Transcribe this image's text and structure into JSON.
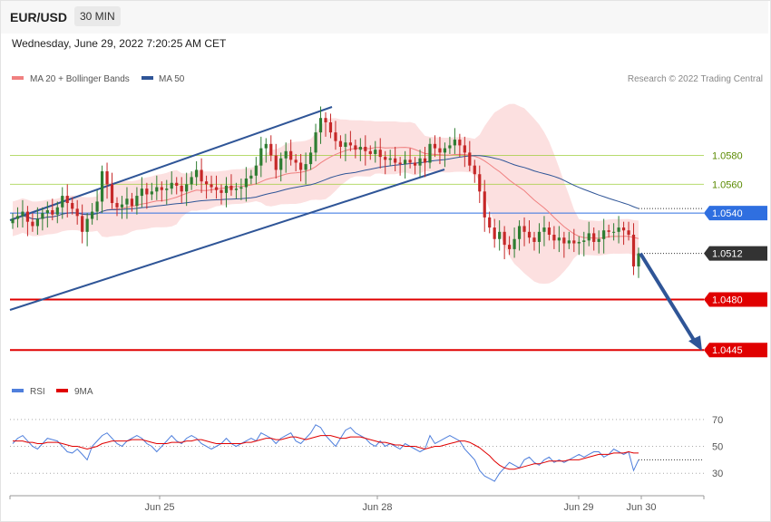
{
  "header": {
    "pair": "EUR/USD",
    "timeframe": "30 MIN",
    "datetime": "Wednesday, June 29, 2022 7:20:25 AM CET"
  },
  "credit": "Research © 2022 Trading Central",
  "colors": {
    "bollinger_band": "#fbd6d6",
    "ma20": "#f08080",
    "ma50": "#2f5597",
    "resistance": "#9acd32",
    "pivot": "#2f6fe0",
    "support": "#e00000",
    "current_price": "#333333",
    "candle_up": "#2e7d32",
    "candle_down": "#c62828",
    "rsi": "#4f7fdc",
    "rsi_ma": "#e00000"
  },
  "chart_data": [
    {
      "type": "candlestick",
      "series": [
        {
          "name": "MA 20 + Bollinger Bands",
          "legend": "MA 20 + Bollinger Bands"
        },
        {
          "name": "MA 50",
          "legend": "MA 50"
        }
      ],
      "x_ticks": [
        "Jun 25",
        "Jun 28",
        "Jun 29",
        "Jun 30"
      ],
      "ylim": [
        1.0425,
        1.0625
      ],
      "levels": [
        {
          "value": 1.058,
          "label": "1.0580",
          "kind": "resistance"
        },
        {
          "value": 1.056,
          "label": "1.0560",
          "kind": "resistance"
        },
        {
          "value": 1.054,
          "label": "1.0540",
          "kind": "pivot"
        },
        {
          "value": 1.0512,
          "label": "1.0512",
          "kind": "current"
        },
        {
          "value": 1.048,
          "label": "1.0480",
          "kind": "support"
        },
        {
          "value": 1.0445,
          "label": "1.0445",
          "kind": "support"
        }
      ],
      "close": [
        1.0536,
        1.0538,
        1.0541,
        1.0534,
        1.0531,
        1.0536,
        1.054,
        1.0542,
        1.0539,
        1.0544,
        1.0552,
        1.0547,
        1.0543,
        1.0538,
        1.0527,
        1.0536,
        1.0541,
        1.0548,
        1.0569,
        1.056,
        1.0547,
        1.0544,
        1.0546,
        1.055,
        1.0545,
        1.0552,
        1.0557,
        1.0553,
        1.0555,
        1.0558,
        1.0556,
        1.0557,
        1.0561,
        1.0559,
        1.0555,
        1.056,
        1.0565,
        1.057,
        1.0562,
        1.056,
        1.0558,
        1.0556,
        1.0554,
        1.0559,
        1.0556,
        1.0557,
        1.0558,
        1.0564,
        1.0566,
        1.0573,
        1.0585,
        1.0588,
        1.058,
        1.057,
        1.0578,
        1.0583,
        1.0577,
        1.0575,
        1.057,
        1.0574,
        1.0582,
        1.0596,
        1.0606,
        1.0603,
        1.0596,
        1.059,
        1.0586,
        1.0589,
        1.0587,
        1.0584,
        1.0586,
        1.0583,
        1.0581,
        1.0584,
        1.0579,
        1.0577,
        1.0578,
        1.0575,
        1.0574,
        1.0577,
        1.0575,
        1.0573,
        1.0578,
        1.0575,
        1.0588,
        1.0585,
        1.0582,
        1.0585,
        1.0587,
        1.0591,
        1.0587,
        1.0582,
        1.0573,
        1.0567,
        1.0555,
        1.0537,
        1.053,
        1.0522,
        1.0527,
        1.0518,
        1.0515,
        1.0522,
        1.0531,
        1.0527,
        1.0523,
        1.052,
        1.0527,
        1.053,
        1.0525,
        1.0521,
        1.0523,
        1.0519,
        1.0521,
        1.0519,
        1.052,
        1.0521,
        1.0526,
        1.052,
        1.0522,
        1.0528,
        1.0527,
        1.0527,
        1.053,
        1.0528,
        1.0525,
        1.0503,
        1.0512
      ],
      "forecast": {
        "from": 1.0512,
        "to": 1.0445
      }
    },
    {
      "type": "line",
      "title": "RSI",
      "series": [
        {
          "name": "RSI",
          "legend": "RSI"
        },
        {
          "name": "9MA",
          "legend": "9MA"
        }
      ],
      "yticks": [
        70,
        50,
        30
      ],
      "ylim": [
        18,
        80
      ],
      "rsi": [
        52,
        56,
        58,
        54,
        50,
        48,
        52,
        56,
        55,
        54,
        50,
        46,
        45,
        48,
        44,
        40,
        50,
        54,
        58,
        60,
        56,
        52,
        50,
        54,
        56,
        58,
        56,
        52,
        50,
        46,
        50,
        54,
        58,
        54,
        52,
        56,
        58,
        56,
        52,
        50,
        48,
        50,
        52,
        56,
        52,
        50,
        52,
        54,
        56,
        54,
        60,
        58,
        56,
        52,
        56,
        58,
        60,
        54,
        52,
        56,
        60,
        66,
        64,
        58,
        54,
        50,
        56,
        62,
        64,
        60,
        58,
        56,
        52,
        50,
        54,
        50,
        52,
        50,
        48,
        52,
        50,
        48,
        46,
        48,
        58,
        52,
        54,
        56,
        58,
        56,
        54,
        48,
        44,
        40,
        32,
        28,
        26,
        24,
        30,
        34,
        38,
        36,
        34,
        40,
        42,
        38,
        36,
        40,
        42,
        38,
        40,
        38,
        40,
        42,
        44,
        42,
        44,
        46,
        46,
        42,
        44,
        48,
        46,
        44,
        46,
        32,
        40
      ],
      "ma9": [
        54,
        54,
        54,
        53,
        53,
        52,
        52,
        53,
        53,
        53,
        52,
        51,
        50,
        50,
        49,
        48,
        49,
        50,
        52,
        53,
        54,
        54,
        54,
        54,
        55,
        55,
        55,
        54,
        53,
        52,
        52,
        52,
        53,
        53,
        53,
        54,
        54,
        55,
        55,
        54,
        53,
        52,
        52,
        52,
        52,
        52,
        52,
        53,
        53,
        54,
        55,
        56,
        56,
        55,
        55,
        56,
        57,
        57,
        56,
        55,
        56,
        57,
        58,
        58,
        58,
        57,
        56,
        56,
        57,
        57,
        57,
        56,
        55,
        54,
        53,
        53,
        52,
        51,
        51,
        50,
        50,
        50,
        49,
        48,
        49,
        50,
        50,
        51,
        52,
        53,
        54,
        54,
        53,
        51,
        49,
        46,
        43,
        39,
        36,
        34,
        33,
        33,
        34,
        35,
        36,
        37,
        37,
        38,
        39,
        39,
        39,
        39,
        40,
        40,
        40,
        41,
        42,
        43,
        44,
        44,
        44,
        45,
        45,
        45,
        46,
        45,
        45
      ]
    }
  ]
}
